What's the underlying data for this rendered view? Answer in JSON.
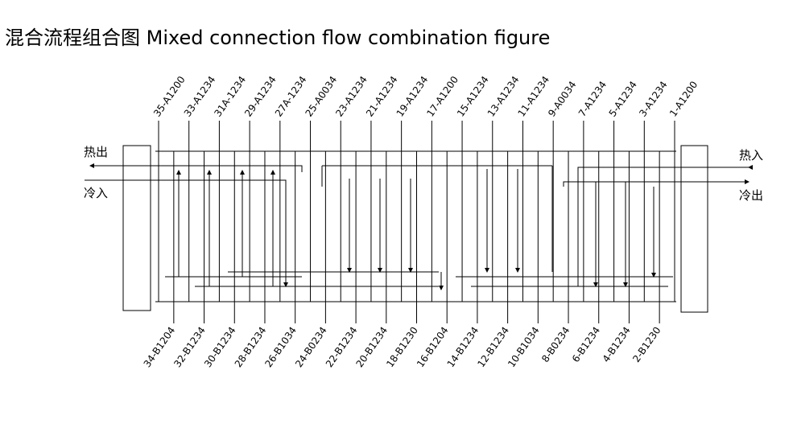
{
  "title": "混合流程组合图 Mixed connection flow combination figure",
  "top_labels": [
    "35-A1200",
    "33-A1234",
    "31A-1234",
    "29-A1234",
    "27A-1234",
    "25-A0034",
    "23-A1234",
    "21-A1234",
    "19-A1234",
    "17-A1200",
    "15-A1234",
    "13-A1234",
    "11-A1234",
    "9-A0034",
    "7-A1234",
    "5-A1234",
    "3-A1234",
    "1-A1200"
  ],
  "bottom_labels": [
    "34-B1204",
    "32-B1234",
    "30-B1234",
    "28-B1234",
    "26-B1034",
    "24-B0234",
    "22-B1234",
    "20-B1234",
    "18-B1230",
    "16-B1204",
    "14-B1234",
    "12-B1234",
    "10-B1034",
    "8-B0234",
    "6-B1234",
    "4-B1234",
    "2-B1230"
  ],
  "left": {
    "hot_out": "热出",
    "cold_in": "冷入"
  },
  "right": {
    "hot_in": "热入",
    "cold_out": "冷出"
  }
}
